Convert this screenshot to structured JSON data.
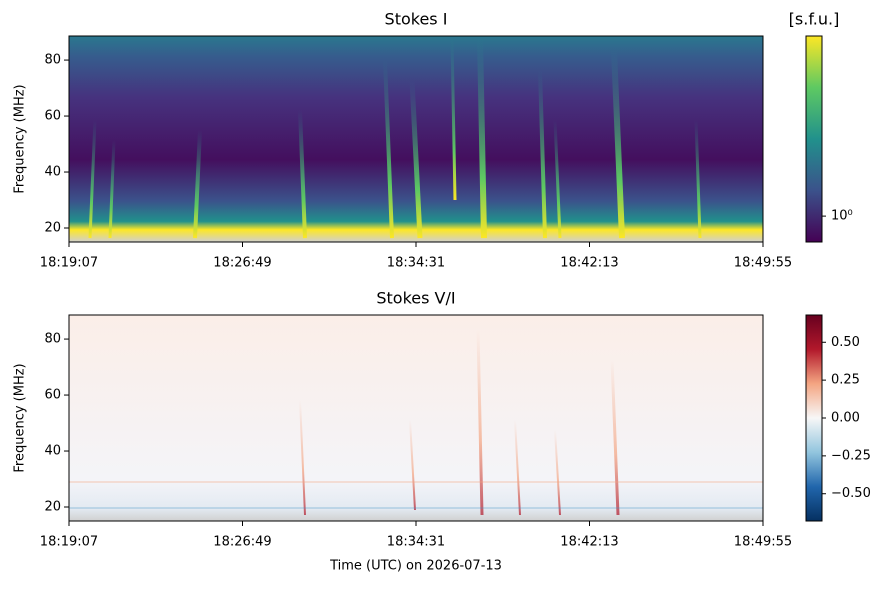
{
  "chart_data": [
    {
      "type": "heatmap",
      "title": "Stokes I",
      "ylabel": "Frequency (MHz)",
      "xticks": [
        "18:19:07",
        "18:26:49",
        "18:34:31",
        "18:42:13",
        "18:49:55"
      ],
      "ylim": [
        15,
        88.6
      ],
      "yticks": [
        20,
        40,
        60,
        80
      ],
      "colormap": "viridis",
      "color_scale": "log",
      "colorbar_label": "[s.f.u.]",
      "clim": [
        0.75,
        7.4
      ],
      "cticks": [
        {
          "value": 1,
          "label": "10⁰"
        }
      ]
    },
    {
      "type": "heatmap",
      "title": "Stokes V/I",
      "ylabel": "Frequency (MHz)",
      "xlabel": "Time (UTC) on 2026-07-13",
      "xticks": [
        "18:19:07",
        "18:26:49",
        "18:34:31",
        "18:42:13",
        "18:49:55"
      ],
      "ylim": [
        15,
        88.6
      ],
      "yticks": [
        20,
        40,
        60,
        80
      ],
      "colormap": "RdBu_r",
      "color_scale": "linear",
      "clim": [
        -0.68,
        0.68
      ],
      "cticks": [
        {
          "value": -0.5,
          "label": "−0.50"
        },
        {
          "value": -0.25,
          "label": "−0.25"
        },
        {
          "value": 0,
          "label": "0.00"
        },
        {
          "value": 0.25,
          "label": "0.25"
        },
        {
          "value": 0.5,
          "label": "0.50"
        }
      ]
    }
  ]
}
